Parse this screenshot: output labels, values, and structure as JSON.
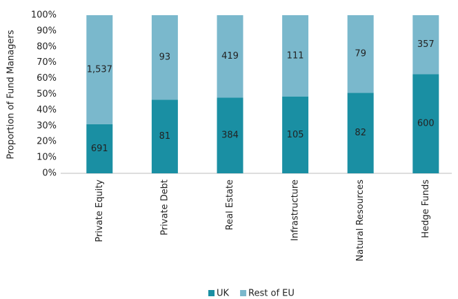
{
  "chart_data": {
    "type": "bar",
    "stacked": "percent",
    "y_label": "Proportion of Fund Managers",
    "categories": [
      "Private Equity",
      "Private Debt",
      "Real Estate",
      "Infrastructure",
      "Natural Resources",
      "Hedge Funds"
    ],
    "series": [
      {
        "name": "UK",
        "color": "#1a8fa3",
        "values": [
          691,
          81,
          384,
          105,
          82,
          600
        ]
      },
      {
        "name": "Rest of EU",
        "color": "#7ab8cc",
        "values": [
          1537,
          93,
          419,
          111,
          79,
          357
        ],
        "value_labels": [
          "1,537",
          "93",
          "419",
          "111",
          "79",
          "357"
        ]
      }
    ],
    "ylim": [
      0,
      100
    ],
    "yticks": [
      {
        "value": 0,
        "label": "0%"
      },
      {
        "value": 10,
        "label": "10%"
      },
      {
        "value": 20,
        "label": "20%"
      },
      {
        "value": 30,
        "label": "30%"
      },
      {
        "value": 40,
        "label": "40%"
      },
      {
        "value": 50,
        "label": "50%"
      },
      {
        "value": 60,
        "label": "60%"
      },
      {
        "value": 70,
        "label": "70%"
      },
      {
        "value": 80,
        "label": "80%"
      },
      {
        "value": 90,
        "label": "90%"
      },
      {
        "value": 100,
        "label": "100%"
      }
    ],
    "legend": "bottom"
  }
}
